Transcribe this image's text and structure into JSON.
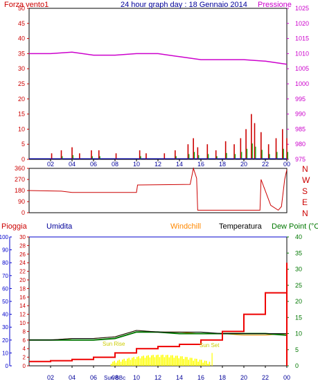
{
  "title": "24 hour graph day : 18 Gennaio 2014",
  "x_ticks": [
    "02",
    "04",
    "06",
    "08",
    "10",
    "12",
    "14",
    "16",
    "18",
    "20",
    "22",
    "00"
  ],
  "colors": {
    "wind": "#cc0000",
    "wind_gust": "#00aa00",
    "wind_avg": "#0000cc",
    "pressure": "#cc00cc",
    "direction": "#cc0000",
    "rain_label": "#cc0000",
    "rain_line": "#ee0000",
    "humidity": "#000099",
    "windchill": "#ff8800",
    "temperature": "#000000",
    "dewpoint": "#007700",
    "solar": "#ffff00",
    "sun_labels": "#cccc00"
  },
  "panel1": {
    "left_label": "Forza vento1",
    "right_label": "Pressione",
    "left_ticks": [
      "50",
      "45",
      "40",
      "35",
      "30",
      "25",
      "20",
      "15",
      "10",
      "5",
      "0"
    ],
    "right_ticks": [
      "1025",
      "1020",
      "1015",
      "1010",
      "1005",
      "1000",
      "995",
      "990",
      "985",
      "980",
      "975"
    ]
  },
  "panel2": {
    "left_ticks": [
      "360",
      "270",
      "180",
      "90",
      "0"
    ],
    "right_labels": [
      "N",
      "W",
      "S",
      "E",
      "N"
    ]
  },
  "panel3": {
    "legend": [
      "Pioggia",
      "Umidita",
      "Windchill",
      "Temperatura",
      "Dew Point (°C"
    ],
    "humidity_ticks": [
      "100",
      "90",
      "80",
      "70",
      "60",
      "50",
      "40",
      "30",
      "20",
      "10",
      "0"
    ],
    "rain_ticks": [
      "30",
      "28",
      "26",
      "24",
      "22",
      "20",
      "18",
      "16",
      "14",
      "12",
      "10",
      "8",
      "6",
      "4",
      "2",
      "0"
    ],
    "temp_ticks": [
      "40",
      "35",
      "30",
      "25",
      "20",
      "15",
      "10",
      "5",
      "0"
    ],
    "sun_labels": [
      "Sun Rise",
      "Sun Set",
      "Sun BBc"
    ]
  },
  "chart_data": [
    {
      "type": "line",
      "title": "24 hour graph day : 18 Gennaio 2014",
      "x": [
        "00",
        "02",
        "04",
        "06",
        "08",
        "10",
        "12",
        "14",
        "16",
        "18",
        "20",
        "22",
        "00"
      ],
      "ylabel": "Forza vento1",
      "ylim": [
        0,
        50
      ],
      "y2label": "Pressione",
      "y2lim": [
        975,
        1025
      ],
      "series": [
        {
          "name": "Pressione",
          "axis": "right",
          "values": [
            1010,
            1010,
            1010.5,
            1009.5,
            1009.5,
            1010,
            1010,
            1009,
            1008,
            1008,
            1008,
            1007.5,
            1006.5
          ]
        },
        {
          "name": "Forza vento1",
          "axis": "left",
          "type": "bar",
          "values": [
            0,
            1,
            2,
            1,
            1,
            2,
            1,
            3,
            6,
            4,
            10,
            8,
            5
          ]
        }
      ],
      "wind_peaks": [
        [
          2.1,
          2
        ],
        [
          3.0,
          3
        ],
        [
          4.0,
          4
        ],
        [
          4.7,
          2
        ],
        [
          5.8,
          3
        ],
        [
          6.5,
          3
        ],
        [
          8.1,
          2
        ],
        [
          10.3,
          3
        ],
        [
          10.9,
          2
        ],
        [
          12.6,
          2
        ],
        [
          13.6,
          3
        ],
        [
          14.8,
          5
        ],
        [
          15.3,
          7
        ],
        [
          15.7,
          4
        ],
        [
          16.6,
          5
        ],
        [
          17.4,
          3
        ],
        [
          18.3,
          6
        ],
        [
          19.1,
          5
        ],
        [
          19.7,
          7
        ],
        [
          20.2,
          10
        ],
        [
          20.7,
          15
        ],
        [
          21.0,
          12
        ],
        [
          21.6,
          9
        ],
        [
          22.3,
          5
        ],
        [
          23.0,
          7
        ],
        [
          23.6,
          10
        ],
        [
          24.0,
          7
        ]
      ]
    },
    {
      "type": "line",
      "ylabel": "direction",
      "ylim": [
        0,
        360
      ],
      "x": [
        0,
        3,
        4,
        10,
        10.1,
        15,
        15.3,
        15.6,
        15.7,
        19.9,
        20,
        21.5,
        21.6,
        22.5,
        23.2,
        23.5,
        23.8,
        24
      ],
      "values": [
        180,
        175,
        165,
        165,
        225,
        230,
        360,
        280,
        20,
        20,
        20,
        20,
        270,
        60,
        20,
        50,
        270,
        350
      ]
    },
    {
      "type": "line",
      "legend": [
        "Pioggia",
        "Umidita",
        "Windchill",
        "Temperatura",
        "Dew Point (°C"
      ],
      "x": [
        0,
        2,
        4,
        6,
        8,
        10,
        12,
        14,
        16,
        18,
        20,
        22,
        24
      ],
      "ylim_humidity": [
        0,
        100
      ],
      "ylim_rain": [
        0,
        30
      ],
      "ylim_temp": [
        0,
        40
      ],
      "series": [
        {
          "name": "Pioggia",
          "values": [
            1,
            1.2,
            1.5,
            2,
            3,
            4,
            4.5,
            5,
            6,
            8,
            12,
            17,
            24
          ]
        },
        {
          "name": "Temperatura",
          "values": [
            8,
            8,
            8.5,
            8.5,
            9,
            11,
            10.5,
            10.5,
            10.5,
            10,
            10,
            10,
            10
          ]
        },
        {
          "name": "Dew Point (°C",
          "values": [
            8,
            8,
            8,
            8,
            8.5,
            10.5,
            10.5,
            10,
            10,
            10,
            10,
            10,
            9.5
          ]
        },
        {
          "name": "Windchill",
          "values": [
            8,
            8,
            8.5,
            8.5,
            9,
            11,
            10.5,
            10.5,
            10,
            10,
            9.5,
            9.5,
            10
          ]
        }
      ]
    }
  ]
}
